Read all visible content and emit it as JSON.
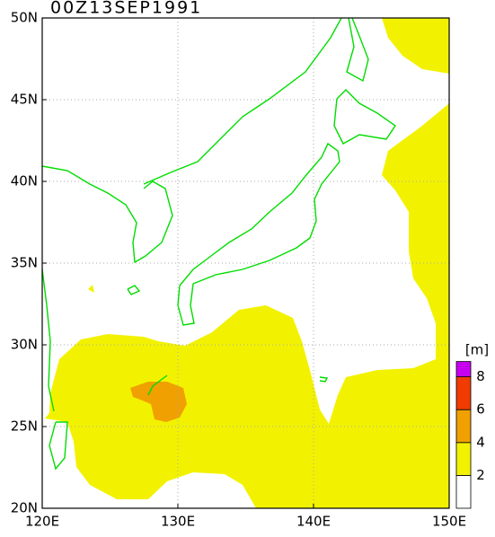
{
  "title": "00Z13SEP1991",
  "map": {
    "lonlim": [
      120,
      150
    ],
    "latlim": [
      20,
      50
    ],
    "xticks": [
      {
        "value": 120,
        "label": "120E"
      },
      {
        "value": 130,
        "label": "130E"
      },
      {
        "value": 140,
        "label": "140E"
      },
      {
        "value": 150,
        "label": "150E"
      }
    ],
    "yticks": [
      {
        "value": 20,
        "label": "20N"
      },
      {
        "value": 25,
        "label": "25N"
      },
      {
        "value": 30,
        "label": "30N"
      },
      {
        "value": 35,
        "label": "35N"
      },
      {
        "value": 40,
        "label": "40N"
      },
      {
        "value": 45,
        "label": "45N"
      },
      {
        "value": 50,
        "label": "50N"
      }
    ],
    "grid": true,
    "coast_color": "#00dd00"
  },
  "legend": {
    "title": "[m]",
    "levels": [
      2,
      4,
      6,
      8
    ],
    "colors": [
      "#ffffff",
      "#f2f200",
      "#f0a000",
      "#f03c00",
      "#c800f0"
    ]
  }
}
